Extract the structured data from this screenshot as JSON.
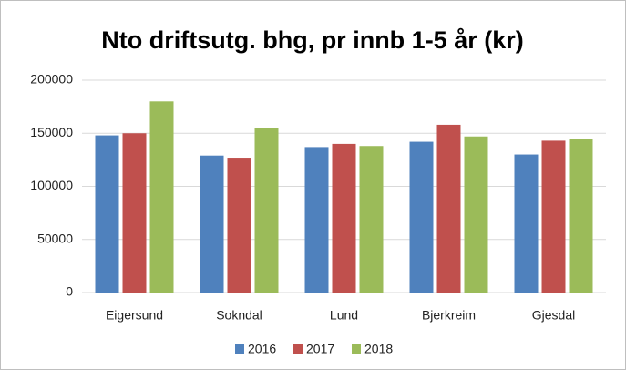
{
  "chart_data": {
    "type": "bar",
    "title": "Nto driftsutg. bhg, pr innb 1-5 år  (kr)",
    "categories": [
      "Eigersund",
      "Sokndal",
      "Lund",
      "Bjerkreim",
      "Gjesdal"
    ],
    "series": [
      {
        "name": "2016",
        "color": "#4f81bd",
        "values": [
          148000,
          129000,
          137000,
          142000,
          130000
        ]
      },
      {
        "name": "2017",
        "color": "#c0504d",
        "values": [
          150000,
          127000,
          140000,
          158000,
          143000
        ]
      },
      {
        "name": "2018",
        "color": "#9bbb59",
        "values": [
          180000,
          155000,
          138000,
          147000,
          145000
        ]
      }
    ],
    "ylim": [
      0,
      200000
    ],
    "yticks": [
      0,
      50000,
      100000,
      150000,
      200000
    ],
    "grid": true,
    "legend": "bottom"
  }
}
